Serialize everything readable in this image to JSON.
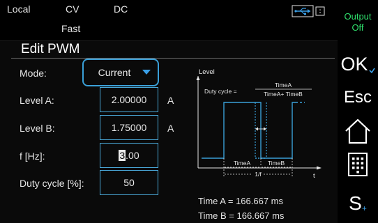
{
  "status": {
    "local": "Local",
    "cv": "CV",
    "dc": "DC",
    "fast": "Fast",
    "usb_icon": "usb-connection-icon"
  },
  "output": {
    "line1": "Output",
    "line2": "Off",
    "color": "#2fe06c"
  },
  "panel": {
    "title": "Edit PWM"
  },
  "fields": {
    "mode": {
      "label": "Mode:",
      "value": "Current"
    },
    "level_a": {
      "label": "Level A:",
      "value": "2.00000",
      "unit": "A"
    },
    "level_b": {
      "label": "Level B:",
      "value": "1.75000",
      "unit": "A"
    },
    "freq": {
      "label": "f [Hz]:",
      "cursor_digit": "3",
      "value_rest": ".00"
    },
    "duty": {
      "label": "Duty cycle [%]:",
      "value": "50"
    }
  },
  "diagram": {
    "level_label": "Level",
    "duty_prefix": "Duty cycle =",
    "frac_num": "TimeA",
    "frac_den": "TimeA+ TimeB",
    "time_a": "TimeA",
    "time_b": "TimeB",
    "period": "1/f",
    "t_axis": "t",
    "line_color": "#3aa0d8"
  },
  "readouts": {
    "time_a": "Time A = 166.667 ms",
    "time_b": "Time B = 166.667 ms"
  },
  "buttons": {
    "ok": "OK",
    "esc": "Esc",
    "s": "S"
  },
  "icons": {
    "mode_dropdown": "chevron-down-icon",
    "ok_check": "check-icon",
    "home": "home-icon",
    "keypad": "keypad-icon",
    "s_plus": "plus-icon"
  }
}
